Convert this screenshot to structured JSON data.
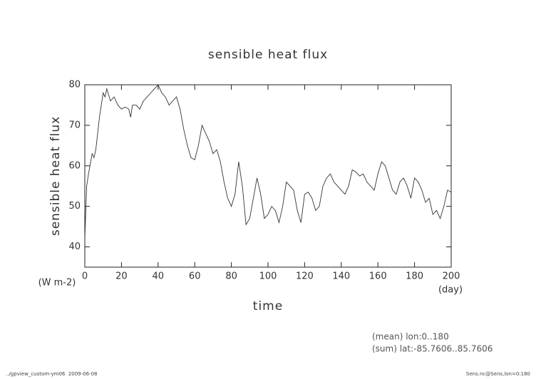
{
  "chart_data": {
    "type": "line",
    "title": "sensible heat flux",
    "y_label": "sensible heat flux",
    "y_unit": "(W m-2)",
    "x_label": "time",
    "x_unit": "(day)",
    "notes": [
      "(mean) lon:0..180",
      "(sum) lat:-85.7606..85.7606"
    ],
    "footer_left": "../gpview_custom-ym06  2009-06-08",
    "footer_right": "Sens.nc@Sens,lon=0:180",
    "xlim": [
      0,
      200
    ],
    "xticks": [
      0,
      20,
      40,
      60,
      80,
      100,
      120,
      140,
      160,
      180,
      200
    ],
    "ylim": [
      35,
      80
    ],
    "yticks": [
      40,
      50,
      60,
      70,
      80
    ],
    "color": "#333333",
    "x": [
      0,
      1,
      2,
      4,
      5,
      6,
      8,
      10,
      11,
      12,
      14,
      16,
      18,
      20,
      22,
      24,
      25,
      26,
      28,
      30,
      32,
      34,
      36,
      38,
      40,
      42,
      44,
      46,
      48,
      50,
      52,
      54,
      56,
      58,
      60,
      62,
      64,
      66,
      68,
      70,
      72,
      74,
      76,
      78,
      80,
      82,
      84,
      86,
      88,
      90,
      92,
      94,
      96,
      98,
      100,
      102,
      104,
      106,
      108,
      110,
      112,
      114,
      116,
      118,
      120,
      122,
      124,
      126,
      128,
      130,
      132,
      134,
      136,
      138,
      140,
      142,
      144,
      146,
      148,
      150,
      152,
      154,
      156,
      158,
      160,
      162,
      164,
      166,
      168,
      170,
      172,
      174,
      176,
      178,
      180,
      182,
      184,
      186,
      188,
      190,
      192,
      194,
      196,
      198,
      200
    ],
    "values": [
      42,
      55,
      58,
      63,
      62,
      64,
      72,
      78,
      77,
      79,
      76,
      77,
      75,
      74,
      74.5,
      74,
      72,
      75,
      75,
      74,
      76,
      77,
      78,
      79,
      80,
      78,
      77,
      75,
      76,
      77,
      74,
      69,
      65,
      62,
      61.5,
      65,
      70,
      68,
      66,
      63,
      64,
      61,
      56,
      52,
      50,
      53,
      61,
      55,
      45.5,
      47,
      52,
      57,
      53,
      47,
      48,
      50,
      49,
      46,
      50,
      56,
      55,
      54,
      49,
      46,
      53,
      53.5,
      52,
      49,
      50,
      55,
      57,
      58,
      56,
      55,
      54,
      53,
      55,
      59,
      58.5,
      57.5,
      58,
      56,
      55,
      54,
      58,
      61,
      60,
      57,
      54,
      53,
      56,
      57,
      55,
      52,
      57,
      56,
      54,
      51,
      52,
      48,
      49,
      47,
      50,
      54,
      53.5
    ]
  }
}
